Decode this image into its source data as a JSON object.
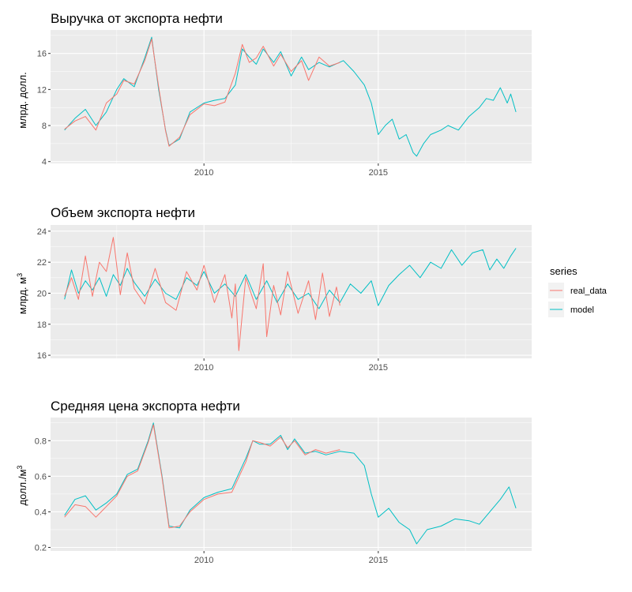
{
  "legend": {
    "title": "series",
    "placement": "right",
    "items": [
      {
        "label": "real_data",
        "color": "#F8766D"
      },
      {
        "label": "model",
        "color": "#00BFC4"
      }
    ]
  },
  "colors": {
    "panel_bg": "#EBEBEB",
    "grid": "#FFFFFF",
    "real": "#F8766D",
    "model": "#00BFC4"
  },
  "panels": [
    {
      "title": "Выручка от экспорта нефти",
      "ylabel": "млрд. долл.",
      "ylabel_sup": ""
    },
    {
      "title": "Объем экспорта нефти",
      "ylabel": "млрд. м",
      "ylabel_sup": "3"
    },
    {
      "title": "Средняя цена экспорта нефти",
      "ylabel": "долл./м",
      "ylabel_sup": "3"
    }
  ],
  "chart_data": [
    {
      "type": "line",
      "title": "Выручка от экспорта нефти",
      "ylabel": "млрд. долл.",
      "xlim": [
        2005.6,
        2019.4
      ],
      "ylim": [
        3.8,
        18.6
      ],
      "xticks": [
        2010,
        2015
      ],
      "yticks": [
        4,
        8,
        12,
        16
      ],
      "grid": true,
      "series": [
        {
          "name": "model",
          "x": [
            2006.0,
            2006.3,
            2006.6,
            2006.9,
            2007.2,
            2007.5,
            2007.7,
            2008.0,
            2008.3,
            2008.5,
            2008.7,
            2008.9,
            2009.0,
            2009.3,
            2009.6,
            2010.0,
            2010.3,
            2010.6,
            2010.9,
            2011.1,
            2011.3,
            2011.5,
            2011.7,
            2012.0,
            2012.2,
            2012.5,
            2012.8,
            2013.0,
            2013.3,
            2013.6,
            2014.0,
            2014.3,
            2014.6,
            2014.8,
            2015.0,
            2015.2,
            2015.4,
            2015.6,
            2015.8,
            2016.0,
            2016.1,
            2016.3,
            2016.5,
            2016.8,
            2017.0,
            2017.3,
            2017.6,
            2017.9,
            2018.1,
            2018.3,
            2018.5,
            2018.7,
            2018.8,
            2018.95
          ],
          "y": [
            7.5,
            8.8,
            9.8,
            8.0,
            9.5,
            12.0,
            13.2,
            12.3,
            15.5,
            17.8,
            12.0,
            7.5,
            5.8,
            6.5,
            9.5,
            10.5,
            10.8,
            11.0,
            12.5,
            16.5,
            15.6,
            14.8,
            16.5,
            15.0,
            16.2,
            13.5,
            15.6,
            14.2,
            15.0,
            14.5,
            15.2,
            14.0,
            12.5,
            10.5,
            7.0,
            8.0,
            8.7,
            6.5,
            7.0,
            5.0,
            4.6,
            6.0,
            7.0,
            7.5,
            8.0,
            7.5,
            9.0,
            10.0,
            11.0,
            10.8,
            12.2,
            10.5,
            11.5,
            9.5
          ]
        },
        {
          "name": "real_data",
          "x": [
            2006.0,
            2006.3,
            2006.6,
            2006.9,
            2007.2,
            2007.5,
            2007.7,
            2008.0,
            2008.3,
            2008.5,
            2008.7,
            2008.9,
            2009.0,
            2009.3,
            2009.6,
            2010.0,
            2010.3,
            2010.6,
            2010.9,
            2011.1,
            2011.3,
            2011.5,
            2011.7,
            2012.0,
            2012.2,
            2012.5,
            2012.8,
            2013.0,
            2013.3,
            2013.6,
            2013.9
          ],
          "y": [
            7.6,
            8.5,
            9.0,
            7.5,
            10.5,
            11.5,
            13.0,
            12.6,
            15.2,
            17.6,
            12.3,
            7.4,
            5.7,
            6.7,
            9.2,
            10.4,
            10.2,
            10.6,
            13.8,
            17.0,
            15.0,
            15.5,
            16.8,
            14.6,
            15.9,
            14.0,
            15.2,
            13.0,
            15.6,
            14.6,
            15.0
          ]
        }
      ]
    },
    {
      "type": "line",
      "title": "Объем экспорта нефти",
      "ylabel": "млрд. м3",
      "xlim": [
        2005.6,
        2019.4
      ],
      "ylim": [
        15.8,
        24.4
      ],
      "xticks": [
        2010,
        2015
      ],
      "yticks": [
        16,
        18,
        20,
        22,
        24
      ],
      "grid": true,
      "series": [
        {
          "name": "model",
          "x": [
            2006.0,
            2006.2,
            2006.4,
            2006.6,
            2006.8,
            2007.0,
            2007.2,
            2007.4,
            2007.6,
            2007.8,
            2008.0,
            2008.3,
            2008.6,
            2008.9,
            2009.2,
            2009.5,
            2009.8,
            2010.0,
            2010.3,
            2010.6,
            2010.9,
            2011.2,
            2011.5,
            2011.8,
            2012.1,
            2012.4,
            2012.7,
            2013.0,
            2013.3,
            2013.6,
            2013.9,
            2014.2,
            2014.5,
            2014.8,
            2015.0,
            2015.3,
            2015.6,
            2015.9,
            2016.2,
            2016.5,
            2016.8,
            2017.1,
            2017.4,
            2017.7,
            2018.0,
            2018.2,
            2018.4,
            2018.6,
            2018.8,
            2018.95
          ],
          "y": [
            19.6,
            21.5,
            20.0,
            20.8,
            20.2,
            21.0,
            19.8,
            21.2,
            20.5,
            21.6,
            20.7,
            19.8,
            20.9,
            20.0,
            19.6,
            21.0,
            20.5,
            21.4,
            20.0,
            20.6,
            19.8,
            21.2,
            19.6,
            20.8,
            19.4,
            20.6,
            19.6,
            20.0,
            19.0,
            20.2,
            19.4,
            20.6,
            20.0,
            20.8,
            19.2,
            20.5,
            21.2,
            21.8,
            21.0,
            22.0,
            21.6,
            22.8,
            21.8,
            22.6,
            22.8,
            21.5,
            22.2,
            21.6,
            22.4,
            22.9
          ]
        },
        {
          "name": "real_data",
          "x": [
            2006.0,
            2006.2,
            2006.4,
            2006.6,
            2006.8,
            2007.0,
            2007.2,
            2007.4,
            2007.6,
            2007.8,
            2008.0,
            2008.3,
            2008.6,
            2008.9,
            2009.2,
            2009.5,
            2009.8,
            2010.0,
            2010.3,
            2010.6,
            2010.8,
            2010.9,
            2011.0,
            2011.2,
            2011.5,
            2011.7,
            2011.8,
            2012.0,
            2012.2,
            2012.4,
            2012.7,
            2013.0,
            2013.2,
            2013.4,
            2013.6,
            2013.8,
            2013.9
          ],
          "y": [
            19.8,
            21.0,
            19.6,
            22.4,
            19.8,
            22.0,
            21.4,
            23.6,
            19.9,
            22.6,
            20.3,
            19.3,
            21.6,
            19.4,
            18.9,
            21.4,
            20.2,
            21.8,
            19.4,
            21.2,
            18.4,
            20.6,
            16.3,
            21.0,
            19.0,
            21.9,
            17.2,
            20.5,
            18.6,
            21.4,
            18.7,
            20.8,
            18.3,
            21.3,
            18.5,
            20.4,
            19.2
          ]
        }
      ]
    },
    {
      "type": "line",
      "title": "Средняя цена экспорта нефти",
      "ylabel": "долл./м3",
      "xlim": [
        2005.6,
        2019.4
      ],
      "ylim": [
        0.18,
        0.93
      ],
      "xticks": [
        2010,
        2015
      ],
      "yticks": [
        0.2,
        0.4,
        0.6,
        0.8
      ],
      "grid": true,
      "series": [
        {
          "name": "model",
          "x": [
            2006.0,
            2006.3,
            2006.6,
            2006.9,
            2007.2,
            2007.5,
            2007.8,
            2008.1,
            2008.4,
            2008.55,
            2008.8,
            2009.0,
            2009.3,
            2009.6,
            2010.0,
            2010.4,
            2010.8,
            2011.2,
            2011.4,
            2011.6,
            2011.9,
            2012.2,
            2012.4,
            2012.6,
            2012.9,
            2013.2,
            2013.5,
            2013.9,
            2014.3,
            2014.6,
            2014.8,
            2015.0,
            2015.3,
            2015.6,
            2015.9,
            2016.1,
            2016.4,
            2016.8,
            2017.2,
            2017.6,
            2017.9,
            2018.2,
            2018.5,
            2018.75,
            2018.95
          ],
          "y": [
            0.38,
            0.47,
            0.49,
            0.41,
            0.45,
            0.5,
            0.61,
            0.64,
            0.8,
            0.9,
            0.6,
            0.32,
            0.31,
            0.41,
            0.48,
            0.51,
            0.53,
            0.7,
            0.8,
            0.78,
            0.78,
            0.83,
            0.75,
            0.81,
            0.73,
            0.74,
            0.72,
            0.74,
            0.73,
            0.66,
            0.5,
            0.37,
            0.42,
            0.34,
            0.3,
            0.22,
            0.3,
            0.32,
            0.36,
            0.35,
            0.33,
            0.4,
            0.47,
            0.54,
            0.42
          ]
        },
        {
          "name": "real_data",
          "x": [
            2006.0,
            2006.3,
            2006.6,
            2006.9,
            2007.2,
            2007.5,
            2007.8,
            2008.1,
            2008.4,
            2008.55,
            2008.8,
            2009.0,
            2009.3,
            2009.6,
            2010.0,
            2010.4,
            2010.8,
            2011.2,
            2011.4,
            2011.6,
            2011.9,
            2012.2,
            2012.4,
            2012.6,
            2012.9,
            2013.2,
            2013.5,
            2013.9
          ],
          "y": [
            0.37,
            0.44,
            0.43,
            0.37,
            0.43,
            0.49,
            0.6,
            0.63,
            0.79,
            0.89,
            0.59,
            0.31,
            0.32,
            0.4,
            0.47,
            0.5,
            0.51,
            0.68,
            0.8,
            0.79,
            0.77,
            0.82,
            0.76,
            0.8,
            0.72,
            0.75,
            0.73,
            0.75
          ]
        }
      ]
    }
  ]
}
